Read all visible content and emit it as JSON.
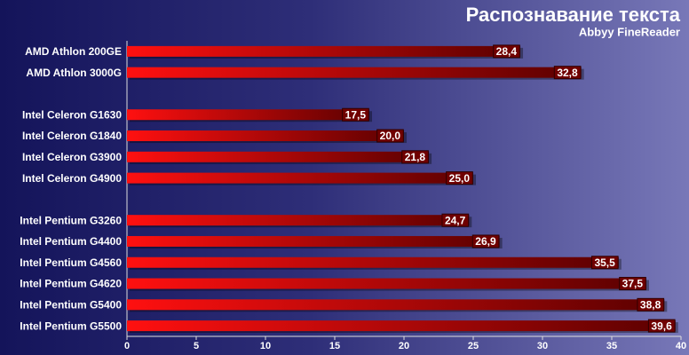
{
  "chart_data": {
    "type": "hbar",
    "title": "Распознавание текста",
    "subtitle": "Abbyy FineReader",
    "categories": [
      "AMD Athlon 200GE",
      "AMD Athlon 3000G",
      null,
      "Intel Celeron G1630",
      "Intel Celeron G1840",
      "Intel Celeron G3900",
      "Intel Celeron G4900",
      null,
      "Intel Pentium G3260",
      "Intel Pentium G4400",
      "Intel Pentium G4560",
      "Intel Pentium G4620",
      "Intel Pentium G5400",
      "Intel Pentium G5500"
    ],
    "values": [
      28.4,
      32.8,
      null,
      17.5,
      20.0,
      21.8,
      25.0,
      null,
      24.7,
      26.9,
      35.5,
      37.5,
      38.8,
      39.6
    ],
    "value_labels": [
      "28,4",
      "32,8",
      null,
      "17,5",
      "20,0",
      "21,8",
      "25,0",
      null,
      "24,7",
      "26,9",
      "35,5",
      "37,5",
      "38,8",
      "39,6"
    ],
    "color": "#e00000",
    "xlim": [
      0,
      40
    ],
    "xticks": [
      0,
      5,
      10,
      15,
      20,
      25,
      30,
      35,
      40
    ]
  }
}
